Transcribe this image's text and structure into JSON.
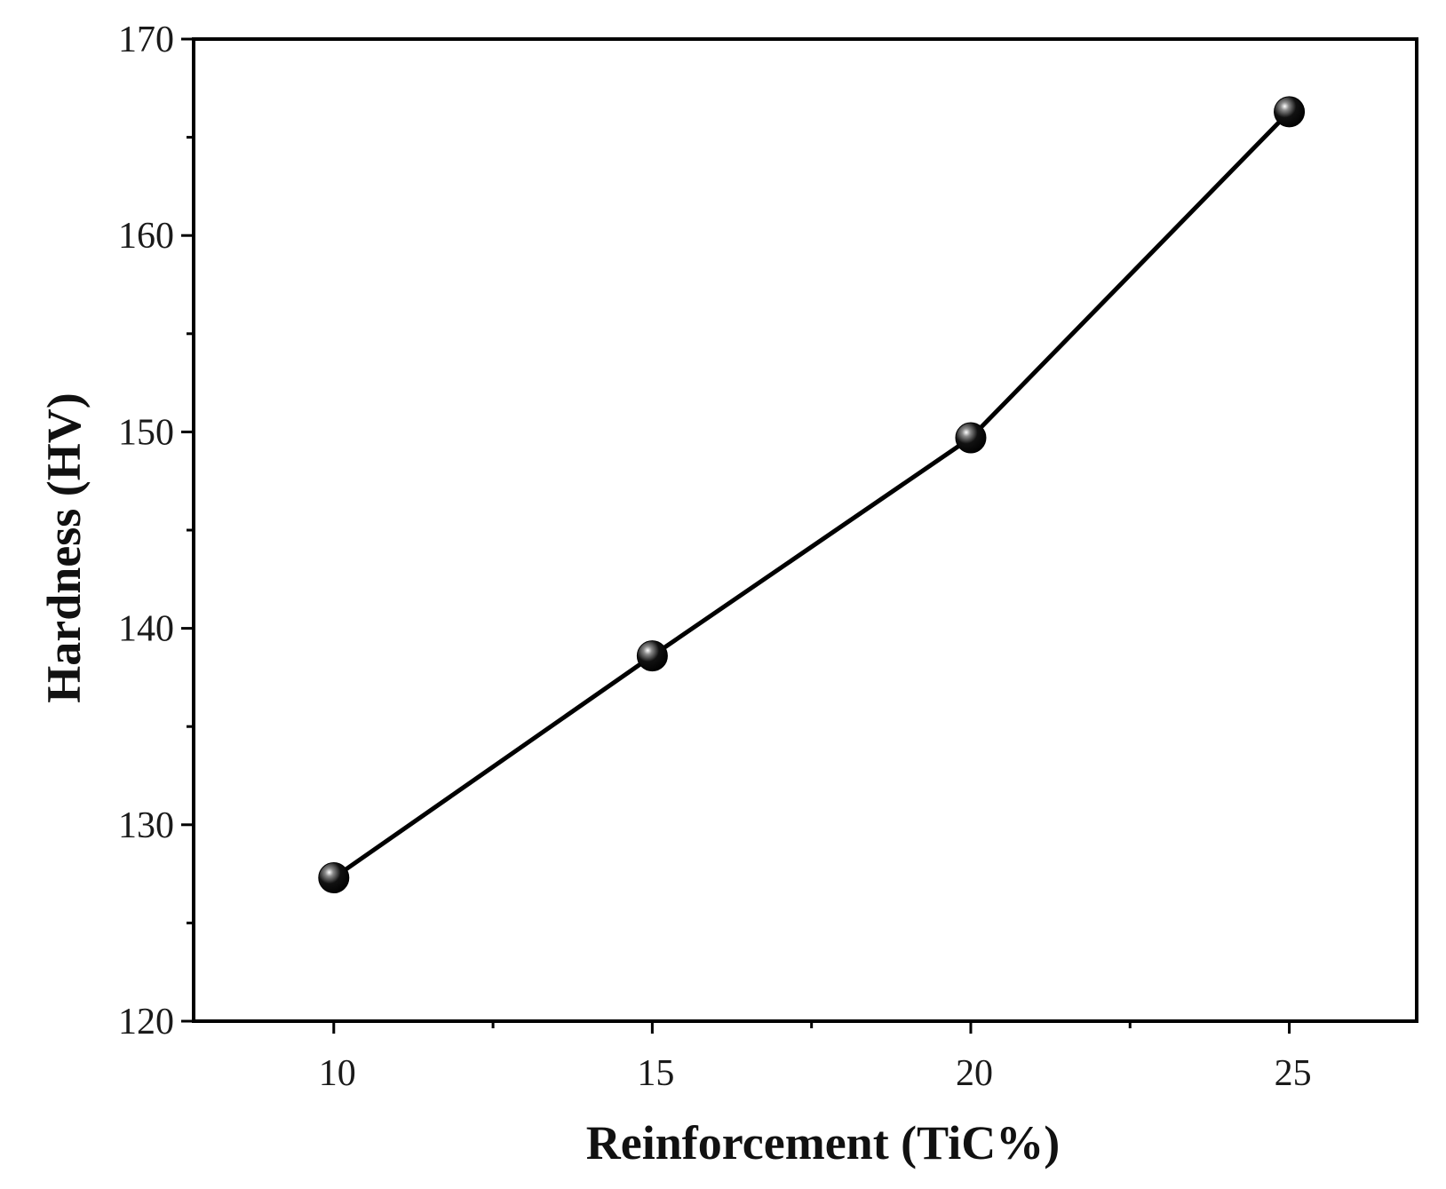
{
  "chart_data": {
    "type": "line",
    "title": "",
    "xlabel": "Reinforcement (TiC%)",
    "ylabel": "Hardness (HV)",
    "x": [
      10,
      15,
      20,
      25
    ],
    "series": [
      {
        "values": [
          127.3,
          138.6,
          149.7,
          166.3
        ]
      }
    ],
    "xlim": [
      7.8,
      27
    ],
    "ylim": [
      120,
      170
    ],
    "xticks": [
      10,
      15,
      20,
      25
    ],
    "xtick_labels": [
      "10",
      "15",
      "20",
      "25"
    ],
    "yticks": [
      120,
      130,
      140,
      150,
      160,
      170
    ],
    "ytick_labels": [
      "120",
      "130",
      "140",
      "150",
      "160",
      "170"
    ],
    "grid": false,
    "legend": "none",
    "line_color": "#000000",
    "marker_color": "#000000"
  }
}
